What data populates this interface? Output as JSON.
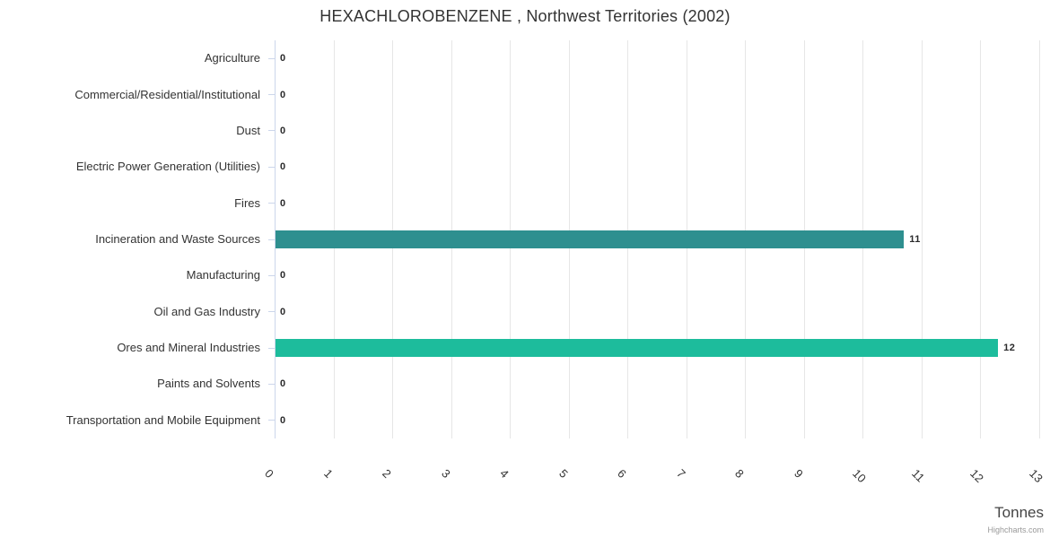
{
  "title": "HEXACHLOROBENZENE , Northwest Territories (2002)",
  "credits": "Highcharts.com",
  "chart_data": {
    "type": "bar",
    "orientation": "horizontal",
    "title": "HEXACHLOROBENZENE , Northwest Territories (2002)",
    "xlabel": "Tonnes",
    "ylabel": "",
    "xlim": [
      0,
      13
    ],
    "grid": true,
    "legend": false,
    "categories": [
      "Agriculture",
      "Commercial/Residential/Institutional",
      "Dust",
      "Electric Power Generation (Utilities)",
      "Fires",
      "Incineration and Waste Sources",
      "Manufacturing",
      "Oil and Gas Industry",
      "Ores and Mineral Industries",
      "Paints and Solvents",
      "Transportation and Mobile Equipment"
    ],
    "values": [
      0,
      0,
      0,
      0,
      0,
      10.7,
      0,
      0,
      12.3,
      0,
      0
    ],
    "data_labels": [
      "0",
      "0",
      "0",
      "0",
      "0",
      "11",
      "0",
      "0",
      "12",
      "0",
      "0"
    ],
    "x_tick_labels": [
      "0",
      "1",
      "2",
      "3",
      "4",
      "5",
      "6",
      "7",
      "8",
      "9",
      "10",
      "11",
      "12",
      "13"
    ],
    "x_tick_rotation_deg": 45,
    "point_colors": {
      "5": "#2e8f8f",
      "8": "#1dbc9c"
    },
    "default_bar_color": "#2e8f8f",
    "gridline_color": "#e6e6e6",
    "axis_line_color": "#ccd6eb"
  }
}
